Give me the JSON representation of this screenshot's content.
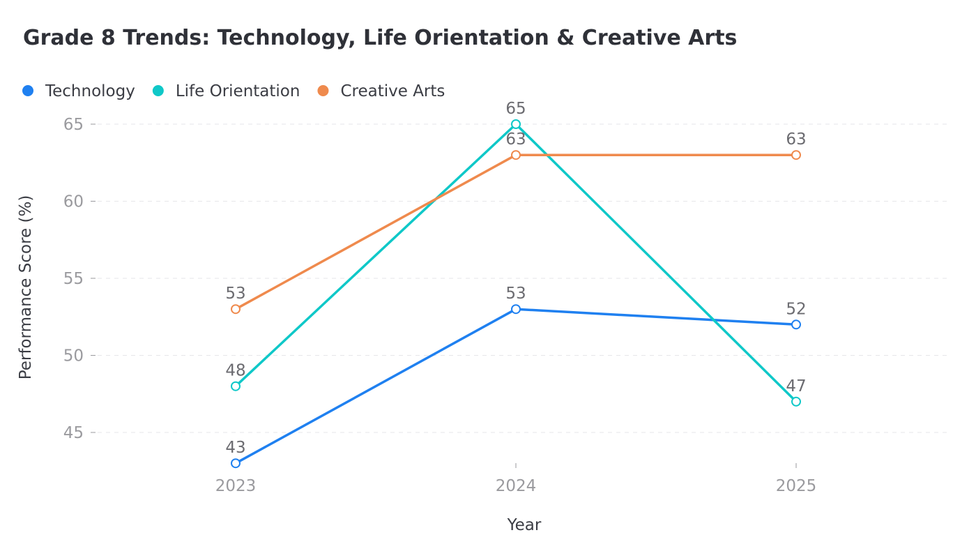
{
  "chart_data": {
    "type": "line",
    "title": "Grade 8 Trends: Technology, Life Orientation & Creative Arts",
    "xlabel": "Year",
    "ylabel": "Performance Score (%)",
    "x": [
      "2023",
      "2024",
      "2025"
    ],
    "ylim": [
      42,
      65.5
    ],
    "yticks": [
      45,
      50,
      55,
      60,
      65
    ],
    "grid": true,
    "legend_position": "top-left",
    "series": [
      {
        "name": "Technology",
        "color": "#1f80f0",
        "values": [
          43,
          53,
          52
        ]
      },
      {
        "name": "Life Orientation",
        "color": "#0fc8c8",
        "values": [
          48,
          65,
          47
        ]
      },
      {
        "name": "Creative Arts",
        "color": "#ef8a4d",
        "values": [
          53,
          63,
          63
        ]
      }
    ]
  }
}
